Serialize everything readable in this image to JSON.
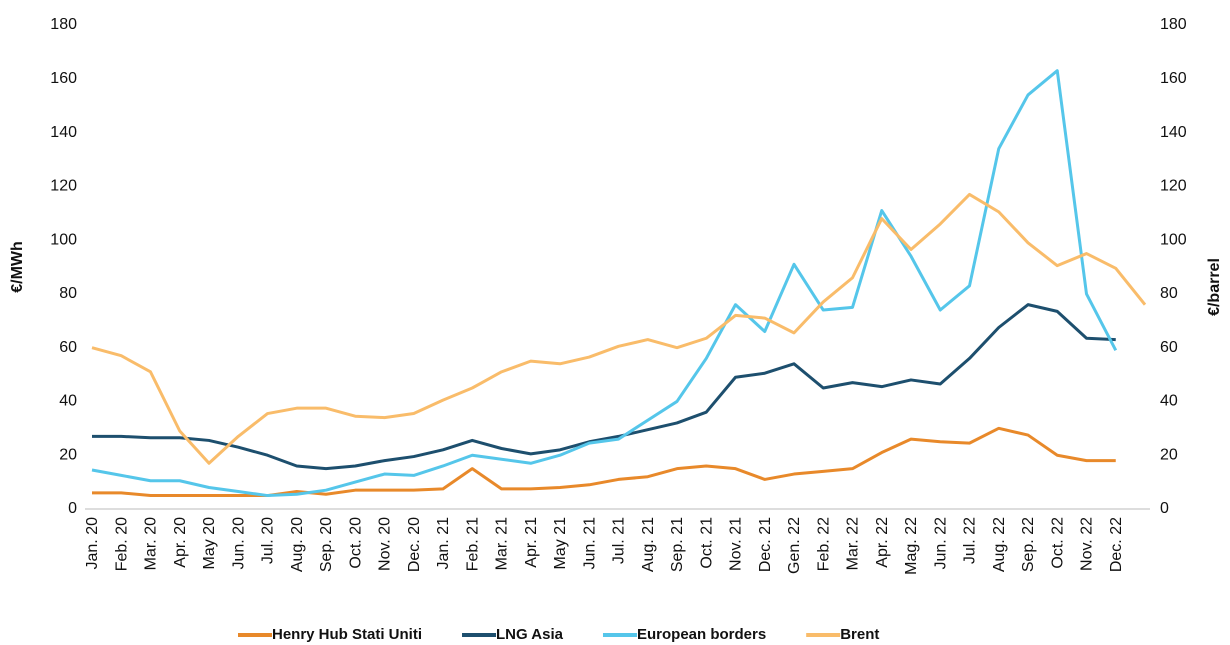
{
  "chart_data": {
    "type": "line",
    "categories": [
      "Jan. 20",
      "Feb. 20",
      "Mar. 20",
      "Apr. 20",
      "May 20",
      "Jun. 20",
      "Jul. 20",
      "Aug. 20",
      "Sep. 20",
      "Oct. 20",
      "Nov. 20",
      "Dec. 20",
      "Jan. 21",
      "Feb. 21",
      "Mar. 21",
      "Apr. 21",
      "May 21",
      "Jun. 21",
      "Jul. 21",
      "Aug. 21",
      "Sep. 21",
      "Oct. 21",
      "Nov. 21",
      "Dec. 21",
      "Gen. 22",
      "Feb. 22",
      "Mar. 22",
      "Apr. 22",
      "Mag. 22",
      "Jun. 22",
      "Jul. 22",
      "Aug. 22",
      "Sep. 22",
      "Oct. 22",
      "Nov. 22",
      "Dec. 22",
      null
    ],
    "y_label": "€/MWh",
    "y2_label": "€/barrel",
    "ylim": [
      0,
      180
    ],
    "yticks": [
      0,
      20,
      40,
      60,
      80,
      100,
      120,
      140,
      160,
      180
    ],
    "y2lim": [
      0,
      180
    ],
    "y2ticks": [
      0,
      20,
      40,
      60,
      80,
      100,
      120,
      140,
      160,
      180
    ],
    "legend": "bottom",
    "series": [
      {
        "name": "Henry Hub Stati Uniti",
        "color": "#e8892a",
        "values": [
          6,
          6,
          5,
          5,
          5,
          5,
          5,
          6.5,
          5.5,
          7,
          7,
          7,
          7.5,
          15,
          7.5,
          7.5,
          8,
          9,
          11,
          12,
          15,
          16,
          15,
          11,
          13,
          14,
          15,
          21,
          26,
          25,
          24.5,
          30,
          27.5,
          20,
          18,
          18,
          null
        ]
      },
      {
        "name": "LNG Asia",
        "color": "#1d4f6e",
        "values": [
          27,
          27,
          26.5,
          26.5,
          25.5,
          23,
          20,
          16,
          15,
          16,
          18,
          19.5,
          22,
          25.5,
          22.5,
          20.5,
          22,
          25,
          27,
          29.5,
          32,
          36,
          49,
          50.5,
          54,
          45,
          47,
          45.5,
          48,
          46.5,
          56,
          67.5,
          76,
          73.5,
          63.5,
          63,
          null
        ]
      },
      {
        "name": "European borders",
        "color": "#55c6ea",
        "values": [
          14.5,
          12.5,
          10.5,
          10.5,
          8,
          6.5,
          5,
          5.5,
          7,
          10,
          13,
          12.5,
          16,
          20,
          18.5,
          17,
          20,
          24.5,
          26,
          33,
          40,
          56,
          76,
          66,
          91,
          74,
          75,
          111,
          94,
          74,
          83,
          134,
          154,
          163,
          80,
          59,
          null
        ]
      },
      {
        "name": "Brent",
        "color": "#f9bc6a",
        "axis": "y2",
        "values": [
          60,
          57,
          51,
          29,
          17,
          27,
          35.5,
          37.5,
          37.5,
          34.5,
          34,
          35.5,
          40.5,
          45,
          51,
          55,
          54,
          56.5,
          60.5,
          63,
          60,
          63.5,
          72,
          71,
          65.5,
          77,
          86,
          108,
          96.5,
          106,
          117,
          110.5,
          99,
          90.5,
          95,
          89.5,
          76
        ]
      }
    ]
  }
}
